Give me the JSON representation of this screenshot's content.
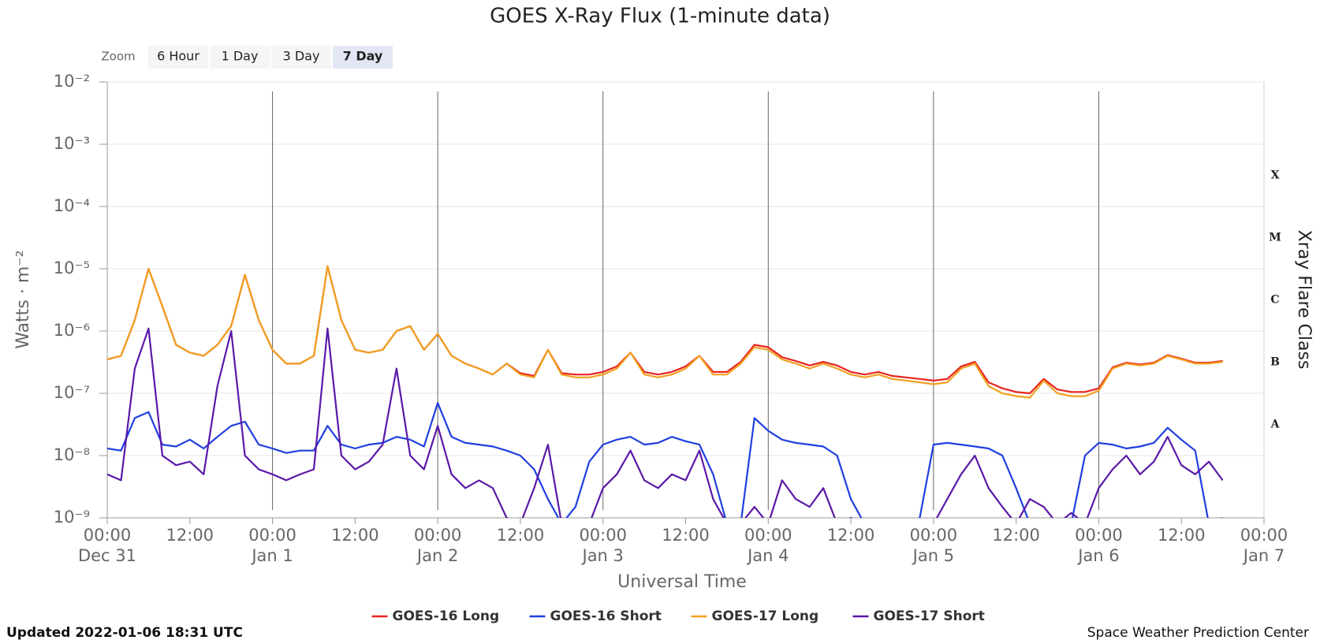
{
  "chart_data": {
    "type": "line",
    "title": "GOES X-Ray Flux (1-minute data)",
    "xlabel": "Universal Time",
    "ylabel": "Watts · m⁻²",
    "y2label": "Xray Flare Class",
    "zoom": {
      "label": "Zoom",
      "options": [
        "6 Hour",
        "1 Day",
        "3 Day",
        "7 Day"
      ],
      "selected": 3
    },
    "updated": "Updated 2022-01-06 18:31 UTC",
    "source": "Space Weather Prediction Center",
    "log_y": true,
    "grid": true,
    "legend": "bottom",
    "xlim": [
      0,
      168
    ],
    "xticks": [
      {
        "value": 0,
        "label": "00:00"
      },
      {
        "value": 12,
        "label": "12:00"
      },
      {
        "value": 24,
        "label": "00:00"
      },
      {
        "value": 36,
        "label": "12:00"
      },
      {
        "value": 48,
        "label": "00:00"
      },
      {
        "value": 60,
        "label": "12:00"
      },
      {
        "value": 72,
        "label": "00:00"
      },
      {
        "value": 84,
        "label": "12:00"
      },
      {
        "value": 96,
        "label": "00:00"
      },
      {
        "value": 108,
        "label": "12:00"
      },
      {
        "value": 120,
        "label": "00:00"
      },
      {
        "value": 132,
        "label": "12:00"
      },
      {
        "value": 144,
        "label": "00:00"
      },
      {
        "value": 156,
        "label": "12:00"
      },
      {
        "value": 168,
        "label": "00:00"
      }
    ],
    "date_ticks": [
      {
        "value": 0,
        "label": "Dec 31"
      },
      {
        "value": 24,
        "label": "Jan 1"
      },
      {
        "value": 48,
        "label": "Jan 2"
      },
      {
        "value": 72,
        "label": "Jan 3"
      },
      {
        "value": 96,
        "label": "Jan 4"
      },
      {
        "value": 120,
        "label": "Jan 5"
      },
      {
        "value": 144,
        "label": "Jan 6"
      },
      {
        "value": 168,
        "label": "Jan 7"
      }
    ],
    "ylim": [
      1e-09,
      0.01
    ],
    "yticks": [
      {
        "value": 1e-09,
        "label": "10⁻⁹"
      },
      {
        "value": 1e-08,
        "label": "10⁻⁸"
      },
      {
        "value": 1e-07,
        "label": "10⁻⁷"
      },
      {
        "value": 1e-06,
        "label": "10⁻⁶"
      },
      {
        "value": 1e-05,
        "label": "10⁻⁵"
      },
      {
        "value": 0.0001,
        "label": "10⁻⁴"
      },
      {
        "value": 0.001,
        "label": "10⁻³"
      },
      {
        "value": 0.01,
        "label": "10⁻²"
      }
    ],
    "flare_classes": [
      {
        "value": 3.16e-08,
        "label": "A"
      },
      {
        "value": 3.16e-07,
        "label": "B"
      },
      {
        "value": 3.16e-06,
        "label": "C"
      },
      {
        "value": 3.16e-05,
        "label": "M"
      },
      {
        "value": 0.000316,
        "label": "X"
      }
    ],
    "x": [
      0,
      2,
      4,
      6,
      8,
      10,
      12,
      14,
      16,
      18,
      20,
      22,
      24,
      26,
      28,
      30,
      32,
      34,
      36,
      38,
      40,
      42,
      44,
      46,
      48,
      50,
      52,
      54,
      56,
      58,
      60,
      62,
      64,
      66,
      68,
      70,
      72,
      74,
      76,
      78,
      80,
      82,
      84,
      86,
      88,
      90,
      92,
      94,
      96,
      98,
      100,
      102,
      104,
      106,
      108,
      110,
      112,
      114,
      116,
      118,
      120,
      122,
      124,
      126,
      128,
      130,
      132,
      134,
      136,
      138,
      140,
      142,
      144,
      146,
      148,
      150,
      152,
      154,
      156,
      158,
      160,
      162
    ],
    "series": [
      {
        "name": "GOES-16 Long",
        "color": "#e8231f",
        "values": [
          3.5e-07,
          4e-07,
          1.5e-06,
          1e-05,
          2.5e-06,
          6e-07,
          4.5e-07,
          4e-07,
          6e-07,
          1.2e-06,
          8e-06,
          1.5e-06,
          5e-07,
          3e-07,
          3e-07,
          4e-07,
          1.1e-05,
          1.5e-06,
          5e-07,
          4.5e-07,
          5e-07,
          1e-06,
          1.2e-06,
          5e-07,
          9e-07,
          4e-07,
          3e-07,
          2.5e-07,
          2e-07,
          3e-07,
          2.1e-07,
          1.9e-07,
          5e-07,
          2.1e-07,
          2e-07,
          2e-07,
          2.2e-07,
          2.7e-07,
          4.5e-07,
          2.2e-07,
          2e-07,
          2.2e-07,
          2.7e-07,
          4e-07,
          2.2e-07,
          2.2e-07,
          3.2e-07,
          6e-07,
          5.5e-07,
          3.8e-07,
          3.3e-07,
          2.8e-07,
          3.2e-07,
          2.8e-07,
          2.2e-07,
          2e-07,
          2.2e-07,
          1.9e-07,
          1.8e-07,
          1.7e-07,
          1.6e-07,
          1.7e-07,
          2.7e-07,
          3.2e-07,
          1.5e-07,
          1.2e-07,
          1.05e-07,
          1e-07,
          1.7e-07,
          1.15e-07,
          1.05e-07,
          1.05e-07,
          1.2e-07,
          2.6e-07,
          3.1e-07,
          2.9e-07,
          3.1e-07,
          4.1e-07,
          3.6e-07,
          3.1e-07,
          3.1e-07,
          3.3e-07
        ]
      },
      {
        "name": "GOES-16 Short",
        "color": "#1f3fe0",
        "values": [
          1.3e-08,
          1.2e-08,
          4e-08,
          5e-08,
          1.5e-08,
          1.4e-08,
          1.8e-08,
          1.3e-08,
          2e-08,
          3e-08,
          3.5e-08,
          1.5e-08,
          1.3e-08,
          1.1e-08,
          1.2e-08,
          1.2e-08,
          3e-08,
          1.5e-08,
          1.3e-08,
          1.5e-08,
          1.6e-08,
          2e-08,
          1.8e-08,
          1.4e-08,
          7e-08,
          2e-08,
          1.6e-08,
          1.5e-08,
          1.4e-08,
          1.2e-08,
          1e-08,
          6e-09,
          2e-09,
          8e-10,
          1.5e-09,
          8e-09,
          1.5e-08,
          1.8e-08,
          2e-08,
          1.5e-08,
          1.6e-08,
          2e-08,
          1.7e-08,
          1.5e-08,
          5e-09,
          8e-10,
          8e-10,
          4e-08,
          2.5e-08,
          1.8e-08,
          1.6e-08,
          1.5e-08,
          1.4e-08,
          1e-08,
          2e-09,
          8e-10,
          8e-10,
          8e-10,
          8e-10,
          1e-09,
          1.5e-08,
          1.6e-08,
          1.5e-08,
          1.4e-08,
          1.3e-08,
          1e-08,
          3e-09,
          8e-10,
          8e-10,
          8e-10,
          8e-10,
          1e-08,
          1.6e-08,
          1.5e-08,
          1.3e-08,
          1.4e-08,
          1.6e-08,
          2.8e-08,
          1.8e-08,
          1.2e-08,
          8e-10,
          1e-09
        ]
      },
      {
        "name": "GOES-17 Long",
        "color": "#f0a020",
        "values": [
          3.5e-07,
          4e-07,
          1.5e-06,
          1e-05,
          2.5e-06,
          6e-07,
          4.5e-07,
          4e-07,
          6e-07,
          1.2e-06,
          8e-06,
          1.5e-06,
          5e-07,
          3e-07,
          3e-07,
          4e-07,
          1.1e-05,
          1.5e-06,
          5e-07,
          4.5e-07,
          5e-07,
          1e-06,
          1.2e-06,
          5e-07,
          9e-07,
          4e-07,
          3e-07,
          2.5e-07,
          2e-07,
          3e-07,
          2e-07,
          1.8e-07,
          5e-07,
          2e-07,
          1.8e-07,
          1.8e-07,
          2e-07,
          2.5e-07,
          4.5e-07,
          2e-07,
          1.8e-07,
          2e-07,
          2.5e-07,
          4e-07,
          2e-07,
          2e-07,
          3e-07,
          5.5e-07,
          5e-07,
          3.5e-07,
          3e-07,
          2.5e-07,
          3e-07,
          2.5e-07,
          2e-07,
          1.8e-07,
          2e-07,
          1.7e-07,
          1.6e-07,
          1.5e-07,
          1.4e-07,
          1.5e-07,
          2.5e-07,
          3e-07,
          1.3e-07,
          1e-07,
          9e-08,
          8.5e-08,
          1.6e-07,
          1e-07,
          9e-08,
          9e-08,
          1.1e-07,
          2.5e-07,
          3e-07,
          2.8e-07,
          3e-07,
          4e-07,
          3.5e-07,
          3e-07,
          3e-07,
          3.2e-07
        ]
      },
      {
        "name": "GOES-17 Short",
        "color": "#5a18a8",
        "values": [
          5e-09,
          4e-09,
          2.5e-07,
          1.1e-06,
          1e-08,
          7e-09,
          8e-09,
          5e-09,
          1.3e-07,
          1e-06,
          1e-08,
          6e-09,
          5e-09,
          4e-09,
          5e-09,
          6e-09,
          1.1e-06,
          1e-08,
          6e-09,
          8e-09,
          1.5e-08,
          2.5e-07,
          1e-08,
          6e-09,
          3e-08,
          5e-09,
          3e-09,
          4e-09,
          3e-09,
          1e-09,
          8e-10,
          3e-09,
          1.5e-08,
          8e-10,
          8e-10,
          8e-10,
          3e-09,
          5e-09,
          1.2e-08,
          4e-09,
          3e-09,
          5e-09,
          4e-09,
          1.2e-08,
          2e-09,
          8e-10,
          8e-10,
          1.5e-09,
          8e-10,
          4e-09,
          2e-09,
          1.5e-09,
          3e-09,
          8e-10,
          1e-09,
          8e-10,
          8e-10,
          8e-10,
          8e-10,
          8e-10,
          8e-10,
          2e-09,
          5e-09,
          1e-08,
          3e-09,
          1.5e-09,
          8e-10,
          2e-09,
          1.5e-09,
          8e-10,
          1.2e-09,
          8e-10,
          3e-09,
          6e-09,
          1e-08,
          5e-09,
          8e-09,
          2e-08,
          7e-09,
          5e-09,
          8e-09,
          4e-09
        ]
      }
    ]
  }
}
